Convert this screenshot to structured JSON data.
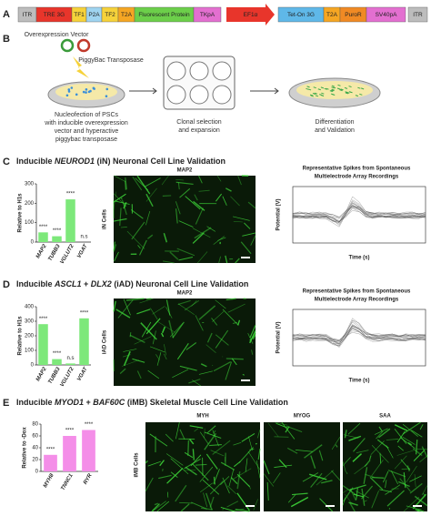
{
  "panel_a": {
    "label": "A",
    "segments": [
      {
        "text": "ITR",
        "color": "#bdbdbd"
      },
      {
        "text": "TRE 3G",
        "color": "#e8352b"
      },
      {
        "text": "TF1",
        "color": "#f6d23a"
      },
      {
        "text": "P2A",
        "color": "#9fd4f0"
      },
      {
        "text": "TF2",
        "color": "#f6d23a"
      },
      {
        "text": "T2A",
        "color": "#f5a623"
      },
      {
        "text": "Fluorescent Protein",
        "color": "#6ccf4a"
      },
      {
        "text": "TKpA",
        "color": "#e36fd0"
      },
      {
        "text": "EF1α",
        "color": "#e8352b"
      },
      {
        "text": "Tet-On 3G",
        "color": "#5fb8e8"
      },
      {
        "text": "T2A",
        "color": "#f5a623"
      },
      {
        "text": "PuroR",
        "color": "#f08a24"
      },
      {
        "text": "SV40pA",
        "color": "#e36fd0"
      },
      {
        "text": "ITR",
        "color": "#bdbdbd"
      }
    ]
  },
  "panel_b": {
    "label": "B",
    "vector_label": "Overexpression Vector",
    "transposase_label": "PiggyBac Transposase",
    "step1": [
      "Nucleofection of PSCs",
      "with inducible overexpression",
      "vector and hyperactive",
      "piggybac transposase"
    ],
    "step2": [
      "Clonal selection",
      "and expansion"
    ],
    "step3": [
      "Differentiation",
      "and Validation"
    ]
  },
  "panel_c": {
    "label": "C",
    "title": [
      "Inducible ",
      "NEUROD1",
      " (iN) Neuronal Cell Line Validation"
    ],
    "chart": {
      "type": "bar",
      "y_label": "Relative to H1s",
      "categories": [
        "MAP2",
        "TUBB3",
        "VGLUT2",
        "VGAT"
      ],
      "values": [
        50,
        30,
        220,
        0
      ],
      "annotations": [
        "****",
        "****",
        "****",
        "n.s"
      ],
      "color": "#7de87a",
      "ylim": [
        0,
        300
      ],
      "yticks": [
        0,
        100,
        200,
        300
      ]
    },
    "image_label": "MAP2",
    "cell_label": "iN Cells",
    "spike_title": [
      "Representative Spikes from Spontaneous",
      "Multielectrode Array Recordings"
    ],
    "spike_x_label": "Time (s)",
    "spike_y_label": "Potential (V)"
  },
  "panel_d": {
    "label": "D",
    "title": [
      "Inducible ",
      "ASCL1",
      " + ",
      "DLX2",
      " (iAD) Neuronal Cell Line Validation"
    ],
    "chart": {
      "type": "bar",
      "y_label": "Relative to H1s",
      "categories": [
        "MAP2",
        "TUBB3",
        "VGLUT2",
        "VGAT"
      ],
      "values": [
        280,
        40,
        10,
        320
      ],
      "annotations": [
        "****",
        "****",
        "n.s",
        "****"
      ],
      "color": "#7de87a",
      "ylim": [
        0,
        400
      ],
      "yticks": [
        0,
        100,
        200,
        300,
        400
      ]
    },
    "image_label": "MAP2",
    "cell_label": "iAD Cells",
    "spike_title": [
      "Representative Spikes from Spontaneous",
      "Multielectrode Array Recordings"
    ],
    "spike_x_label": "Time (s)",
    "spike_y_label": "Potential (V)"
  },
  "panel_e": {
    "label": "E",
    "title": [
      "Inducible ",
      "MYOD1",
      " + ",
      "BAF60C",
      " (iMB) Skeletal Muscle Cell Line Validation"
    ],
    "chart": {
      "type": "bar",
      "y_label": "Relative to -Dox",
      "categories": [
        "MYH8",
        "TNNC1",
        "RYR"
      ],
      "values": [
        28,
        60,
        70
      ],
      "annotations": [
        "****",
        "****",
        "****"
      ],
      "color": "#f48ee8",
      "ylim": [
        0,
        80
      ],
      "yticks": [
        0,
        20,
        40,
        60,
        80
      ]
    },
    "image_labels": [
      "MYH",
      "MYOG",
      "SAA"
    ],
    "cell_label": "iMB Cells"
  }
}
